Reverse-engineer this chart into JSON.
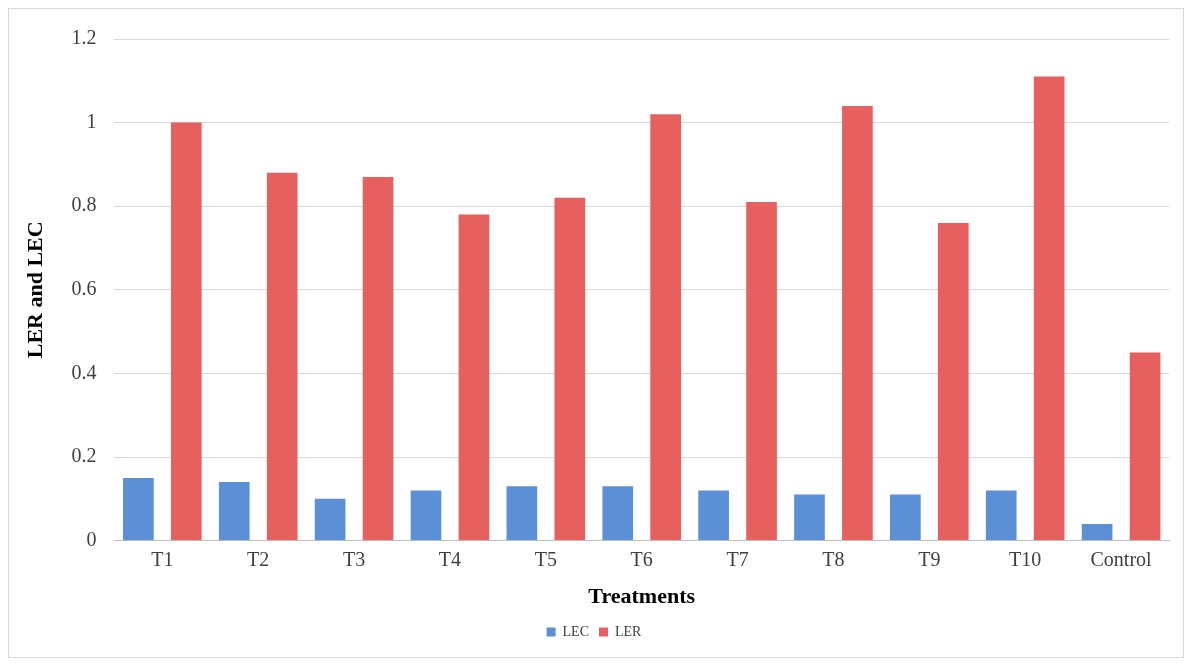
{
  "chart_data": {
    "type": "bar",
    "xlabel": "Treatments",
    "ylabel": "LER and LEC",
    "categories": [
      "T1",
      "T2",
      "T3",
      "T4",
      "T5",
      "T6",
      "T7",
      "T8",
      "T9",
      "T10",
      "Control"
    ],
    "series": [
      {
        "name": "LEC",
        "color": "#5b8fd6",
        "values": [
          0.15,
          0.14,
          0.1,
          0.12,
          0.13,
          0.13,
          0.12,
          0.11,
          0.11,
          0.12,
          0.04
        ]
      },
      {
        "name": "LER",
        "color": "#e5605e",
        "values": [
          1.0,
          0.88,
          0.87,
          0.78,
          0.82,
          1.02,
          0.81,
          1.04,
          0.76,
          1.11,
          0.45
        ]
      }
    ],
    "ylim": [
      0,
      1.2
    ],
    "yticks": [
      0,
      0.2,
      0.4,
      0.6,
      0.8,
      1,
      1.2
    ],
    "grid": "y",
    "legend": "bottom"
  }
}
